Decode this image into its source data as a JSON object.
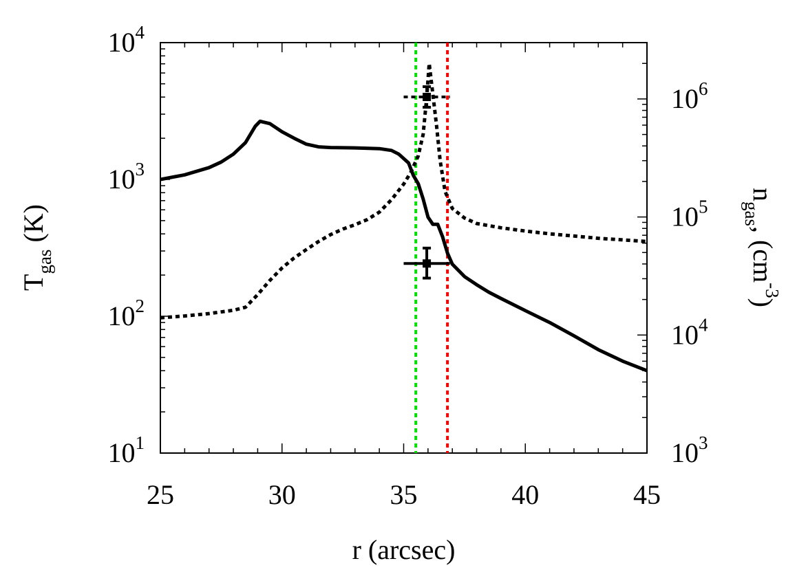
{
  "chart_data": {
    "type": "line",
    "xlabel": "r (arcsec)",
    "ylabel_left": {
      "main": "T",
      "sub": "gas",
      "rest": " (K)"
    },
    "ylabel_right": {
      "main": "n",
      "sub": "gas",
      "rest1": ", (cm",
      "sup": "-3",
      "rest2": ")"
    },
    "xlim": [
      25,
      45
    ],
    "ylim_left": [
      10,
      10000
    ],
    "ylim_right": [
      1000,
      3000000
    ],
    "y_scale": "log",
    "grid": false,
    "x_ticks": [
      {
        "value": 25,
        "label": "25"
      },
      {
        "value": 30,
        "label": "30"
      },
      {
        "value": 35,
        "label": "35"
      },
      {
        "value": 40,
        "label": "40"
      },
      {
        "value": 45,
        "label": "45"
      }
    ],
    "y_ticks_left": [
      {
        "value": 10,
        "base": "10",
        "exp": "1"
      },
      {
        "value": 100,
        "base": "10",
        "exp": "2"
      },
      {
        "value": 1000,
        "base": "10",
        "exp": "3"
      },
      {
        "value": 10000,
        "base": "10",
        "exp": "4"
      }
    ],
    "y_ticks_right": [
      {
        "value": 1000,
        "base": "10",
        "exp": "3"
      },
      {
        "value": 10000,
        "base": "10",
        "exp": "4"
      },
      {
        "value": 100000,
        "base": "10",
        "exp": "5"
      },
      {
        "value": 1000000,
        "base": "10",
        "exp": "6"
      }
    ],
    "series": [
      {
        "axis": "left",
        "style": "solid",
        "color": "#000000",
        "x": [
          25,
          26,
          27,
          27.5,
          28,
          28.5,
          28.9,
          29.1,
          29.5,
          30,
          30.5,
          31,
          31.5,
          32,
          33,
          34,
          34.5,
          34.8,
          35.2,
          35.4,
          35.6,
          35.8,
          36.0,
          36.2,
          36.4,
          36.6,
          36.8,
          37.0,
          37.5,
          38,
          38.5,
          39,
          40,
          41,
          42,
          43,
          44,
          45
        ],
        "y": [
          1000,
          1080,
          1220,
          1340,
          1530,
          1860,
          2450,
          2660,
          2560,
          2230,
          2000,
          1810,
          1730,
          1710,
          1700,
          1680,
          1630,
          1530,
          1320,
          1070,
          930,
          720,
          530,
          470,
          470,
          380,
          290,
          240,
          195,
          170,
          150,
          135,
          110,
          90,
          72,
          57,
          47,
          40
        ]
      },
      {
        "axis": "right",
        "style": "dotted",
        "color": "#000000",
        "x": [
          25,
          26,
          27,
          28,
          28.5,
          29,
          29.5,
          30,
          30.5,
          31,
          31.5,
          32,
          32.5,
          33,
          33.5,
          34,
          34.5,
          35,
          35.3,
          35.6,
          35.8,
          35.95,
          36.05,
          36.2,
          36.35,
          36.5,
          36.7,
          37,
          37.5,
          38,
          39,
          40,
          41,
          42,
          43,
          44,
          45
        ],
        "y": [
          14000,
          14500,
          15200,
          16200,
          17200,
          22000,
          29000,
          37000,
          45000,
          53000,
          62000,
          71000,
          79000,
          86000,
          95000,
          110000,
          140000,
          190000,
          240000,
          330000,
          500000,
          1050000,
          2000000,
          1100000,
          600000,
          300000,
          165000,
          118000,
          98000,
          88000,
          81000,
          76000,
          72000,
          69000,
          66000,
          64000,
          62000
        ]
      }
    ],
    "vertical_lines": [
      {
        "x": 35.5,
        "color": "#00dd00",
        "style": "dotted"
      },
      {
        "x": 36.8,
        "color": "#ee0000",
        "style": "dotted"
      }
    ],
    "error_points": [
      {
        "axis": "left",
        "x": 35.95,
        "y": 243,
        "xerr": [
          35.0,
          36.9
        ],
        "yerr": [
          190,
          315
        ],
        "style": "solid"
      },
      {
        "axis": "right",
        "x": 35.95,
        "y": 1040000,
        "xerr": [
          35.0,
          36.9
        ],
        "yerr": [
          850000,
          1270000
        ],
        "style": "dotted"
      }
    ]
  }
}
